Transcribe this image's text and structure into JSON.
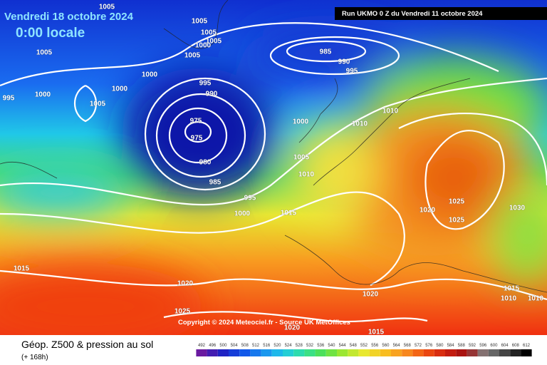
{
  "header": {
    "valid_date": "Vendredi 18 octobre 2024",
    "local_time": "0:00 locale",
    "run": "Run UKMO 0 Z du Vendredi 11 octobre 2024"
  },
  "copyright": "Copyright © 2024 Meteociel.fr - Source UK MetOffices",
  "footer": {
    "title": "Géop. Z500 & pression au sol",
    "lead": "(+ 168h)"
  },
  "isobar_labels": [
    1005,
    1005,
    1005,
    1005,
    1000,
    1005,
    1005,
    1000,
    1000,
    1000,
    995,
    1005,
    995,
    990,
    975,
    975,
    980,
    985,
    985,
    990,
    995,
    1000,
    1010,
    1010,
    1005,
    1010,
    995,
    1000,
    1015,
    1020,
    1025,
    1025,
    1030,
    1015,
    1020,
    1020,
    1015,
    1010,
    1010,
    1025,
    1020,
    1015
  ],
  "color_scale": [
    492,
    496,
    500,
    504,
    508,
    512,
    516,
    520,
    524,
    528,
    532,
    536,
    540,
    544,
    548,
    552,
    556,
    560,
    564,
    568,
    572,
    576,
    580,
    584,
    588,
    592,
    596,
    600,
    604,
    608,
    612
  ]
}
